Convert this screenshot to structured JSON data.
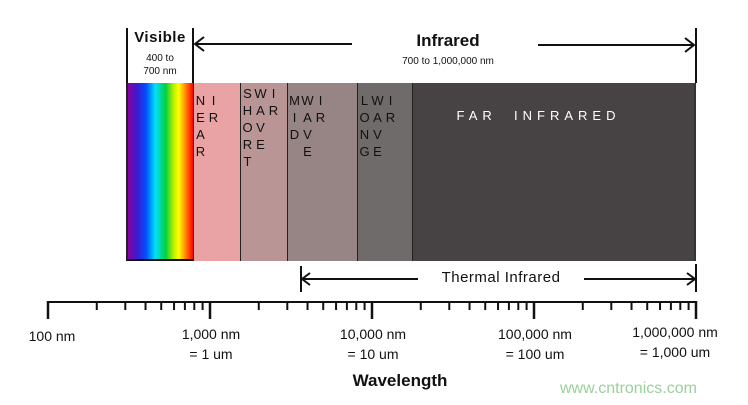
{
  "header": {
    "visible_title": "Visible",
    "visible_range": "400 to\n700 nm",
    "infrared_title": "Infrared",
    "infrared_range": "700 to 1,000,000 nm"
  },
  "bands": [
    {
      "label": "NEAR\nIR",
      "color": "#e9a3a4"
    },
    {
      "label": "SHORT\nWAVE\nIR",
      "color": "#b99596"
    },
    {
      "label": "MID\nWAVE\nIR",
      "color": "#978485"
    },
    {
      "label": "LONG\nWAVE\nIR",
      "color": "#6f6b6b"
    },
    {
      "label": "FAR  INFRARED",
      "color": "#474344"
    }
  ],
  "thermal_label": "Thermal Infrared",
  "axis": {
    "scale": "log",
    "title": "Wavelength",
    "ticks": [
      {
        "line1": "100 nm",
        "line2": ""
      },
      {
        "line1": "1,000 nm",
        "line2": "= 1 um"
      },
      {
        "line1": "10,000 nm",
        "line2": "= 10 um"
      },
      {
        "line1": "100,000 nm",
        "line2": "= 100 um"
      },
      {
        "line1": "1,000,000 nm",
        "line2": "= 1,000 um"
      }
    ]
  },
  "watermark": "www.cntronics.com"
}
